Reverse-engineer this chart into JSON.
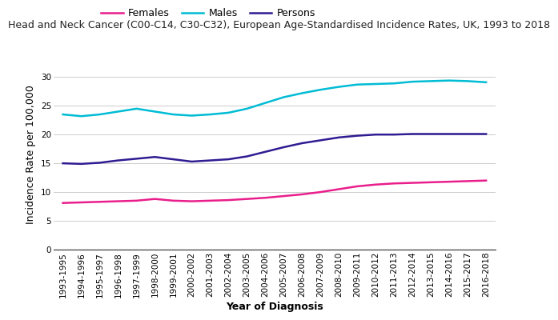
{
  "title": "Head and Neck Cancer (C00-C14, C30-C32), European Age-Standardised Incidence Rates, UK, 1993 to 2018",
  "xlabel": "Year of Diagnosis",
  "ylabel": "Incidence Rate per 100,000",
  "x_labels": [
    "1993-1995",
    "1994-1996",
    "1995-1997",
    "1996-1998",
    "1997-1999",
    "1998-2000",
    "1999-2001",
    "2000-2002",
    "2001-2003",
    "2002-2004",
    "2003-2005",
    "2004-2006",
    "2005-2007",
    "2006-2008",
    "2007-2009",
    "2008-2010",
    "2009-2011",
    "2010-2012",
    "2011-2013",
    "2012-2014",
    "2013-2015",
    "2014-2016",
    "2015-2017",
    "2016-2018"
  ],
  "females": [
    8.1,
    8.2,
    8.3,
    8.4,
    8.5,
    8.8,
    8.5,
    8.4,
    8.5,
    8.6,
    8.8,
    9.0,
    9.3,
    9.6,
    10.0,
    10.5,
    11.0,
    11.3,
    11.5,
    11.6,
    11.7,
    11.8,
    11.9,
    12.0
  ],
  "males": [
    23.5,
    23.2,
    23.5,
    24.0,
    24.5,
    24.0,
    23.5,
    23.3,
    23.5,
    23.8,
    24.5,
    25.5,
    26.5,
    27.2,
    27.8,
    28.3,
    28.7,
    28.8,
    28.9,
    29.2,
    29.3,
    29.4,
    29.3,
    29.1
  ],
  "persons": [
    15.0,
    14.9,
    15.1,
    15.5,
    15.8,
    16.1,
    15.7,
    15.3,
    15.5,
    15.7,
    16.2,
    17.0,
    17.8,
    18.5,
    19.0,
    19.5,
    19.8,
    20.0,
    20.0,
    20.1,
    20.1,
    20.1,
    20.1,
    20.1
  ],
  "females_color": "#e91e8c",
  "males_color": "#00bcd4",
  "persons_color": "#311b92",
  "ylim": [
    0,
    33
  ],
  "yticks": [
    0,
    5,
    10,
    15,
    20,
    25,
    30
  ],
  "bg_color": "#ffffff",
  "grid_color": "#cccccc",
  "title_fontsize": 9.0,
  "label_fontsize": 9,
  "tick_fontsize": 7.5,
  "legend_fontsize": 9,
  "line_width": 1.8
}
